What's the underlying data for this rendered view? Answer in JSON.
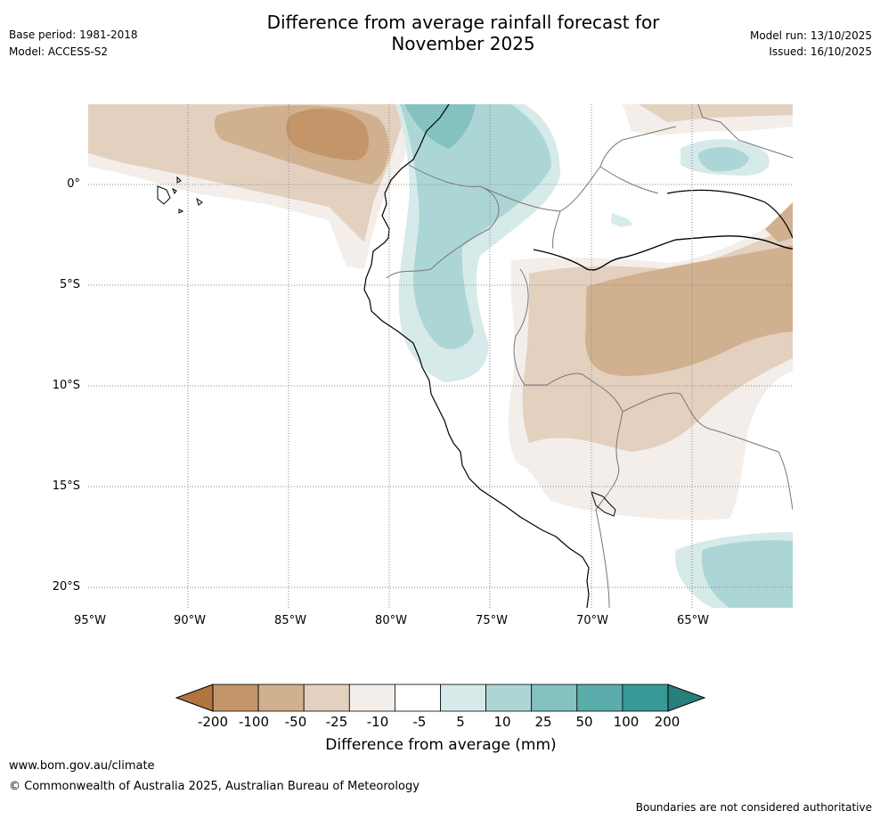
{
  "header": {
    "title_line1": "Difference from average rainfall forecast for",
    "title_line2": "November 2025",
    "base_period": "Base period: 1981-2018",
    "model": "Model: ACCESS-S2",
    "model_run": "Model run: 13/10/2025",
    "issued": "Issued: 16/10/2025"
  },
  "map": {
    "lat_labels": [
      "0°",
      "5°S",
      "10°S",
      "15°S",
      "20°S"
    ],
    "lon_labels": [
      "95°W",
      "90°W",
      "85°W",
      "80°W",
      "75°W",
      "70°W",
      "65°W"
    ]
  },
  "legend": {
    "ticks": [
      "-200",
      "-100",
      "-50",
      "-25",
      "-10",
      "-5",
      "5",
      "10",
      "25",
      "50",
      "100",
      "200"
    ],
    "colors": [
      "#b07540",
      "#c39569",
      "#d1b090",
      "#e4d0bf",
      "#f3eee9",
      "#ffffff",
      "#d6eae9",
      "#acd6d5",
      "#84c2c0",
      "#5aadaa",
      "#359a97",
      "#2a7e7b"
    ],
    "title": "Difference from average (mm)"
  },
  "footer": {
    "url": "www.bom.gov.au/climate",
    "copyright": "© Commonwealth of Australia 2025, Australian Bureau of Meteorology",
    "disclaimer": "Boundaries are not considered authoritative"
  }
}
